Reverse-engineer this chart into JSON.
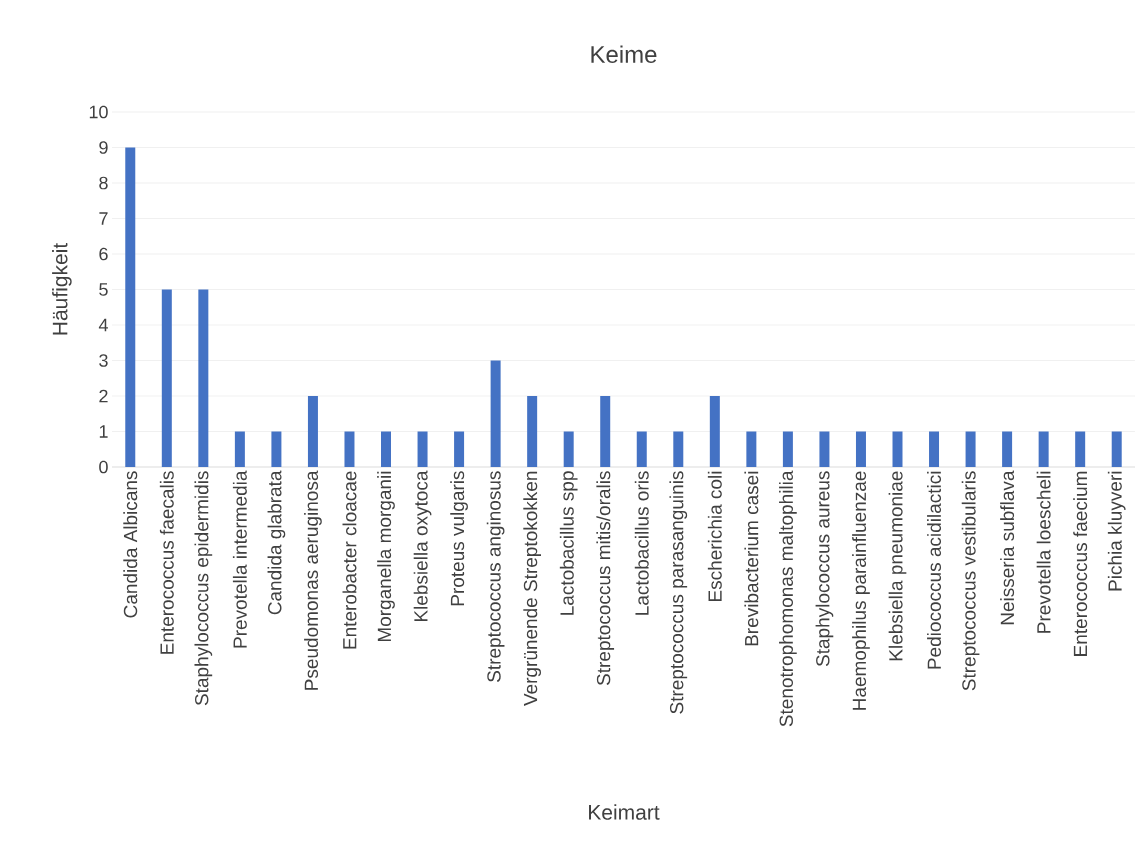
{
  "chart_data": {
    "type": "bar",
    "title": "Keime",
    "xlabel": "Keimart",
    "ylabel": "Häufigkeit",
    "categories": [
      "Candida Albicans",
      "Enterococcus faecalis",
      "Staphylococcus epidermidis",
      "Prevotella intermedia",
      "Candida glabrata",
      "Pseudomonas aeruginosa",
      "Enterobacter cloacae",
      "Morganella morganii",
      "Klebsiella oxytoca",
      "Proteus vulgaris",
      "Streptococcus anginosus",
      "Vergrünende Streptokokken",
      "Lactobacillus spp",
      "Streptococcus mitis/oralis",
      "Lactobacillus oris",
      "Streptococcus parasanguinis",
      "Escherichia coli",
      "Brevibacterium casei",
      "Stenotrophomonas maltophilia",
      "Staphylococcus aureus",
      "Haemophilus parainfluenzae",
      "Klebsiella pneumoniae",
      "Pediococcus acidilactici",
      "Streptococcus vestibularis",
      "Neisseria subflava",
      "Prevotella loescheli",
      "Enterococcus faecium",
      "Pichia kluyveri"
    ],
    "values": [
      9,
      5,
      5,
      1,
      1,
      2,
      1,
      1,
      1,
      1,
      3,
      2,
      1,
      2,
      1,
      1,
      2,
      1,
      1,
      1,
      1,
      1,
      1,
      1,
      1,
      1,
      1,
      1
    ],
    "color": "#4472c4",
    "ylim": [
      0,
      10
    ],
    "yticks": [
      0,
      1,
      2,
      3,
      4,
      5,
      6,
      7,
      8,
      9,
      10
    ],
    "grid": "y"
  }
}
